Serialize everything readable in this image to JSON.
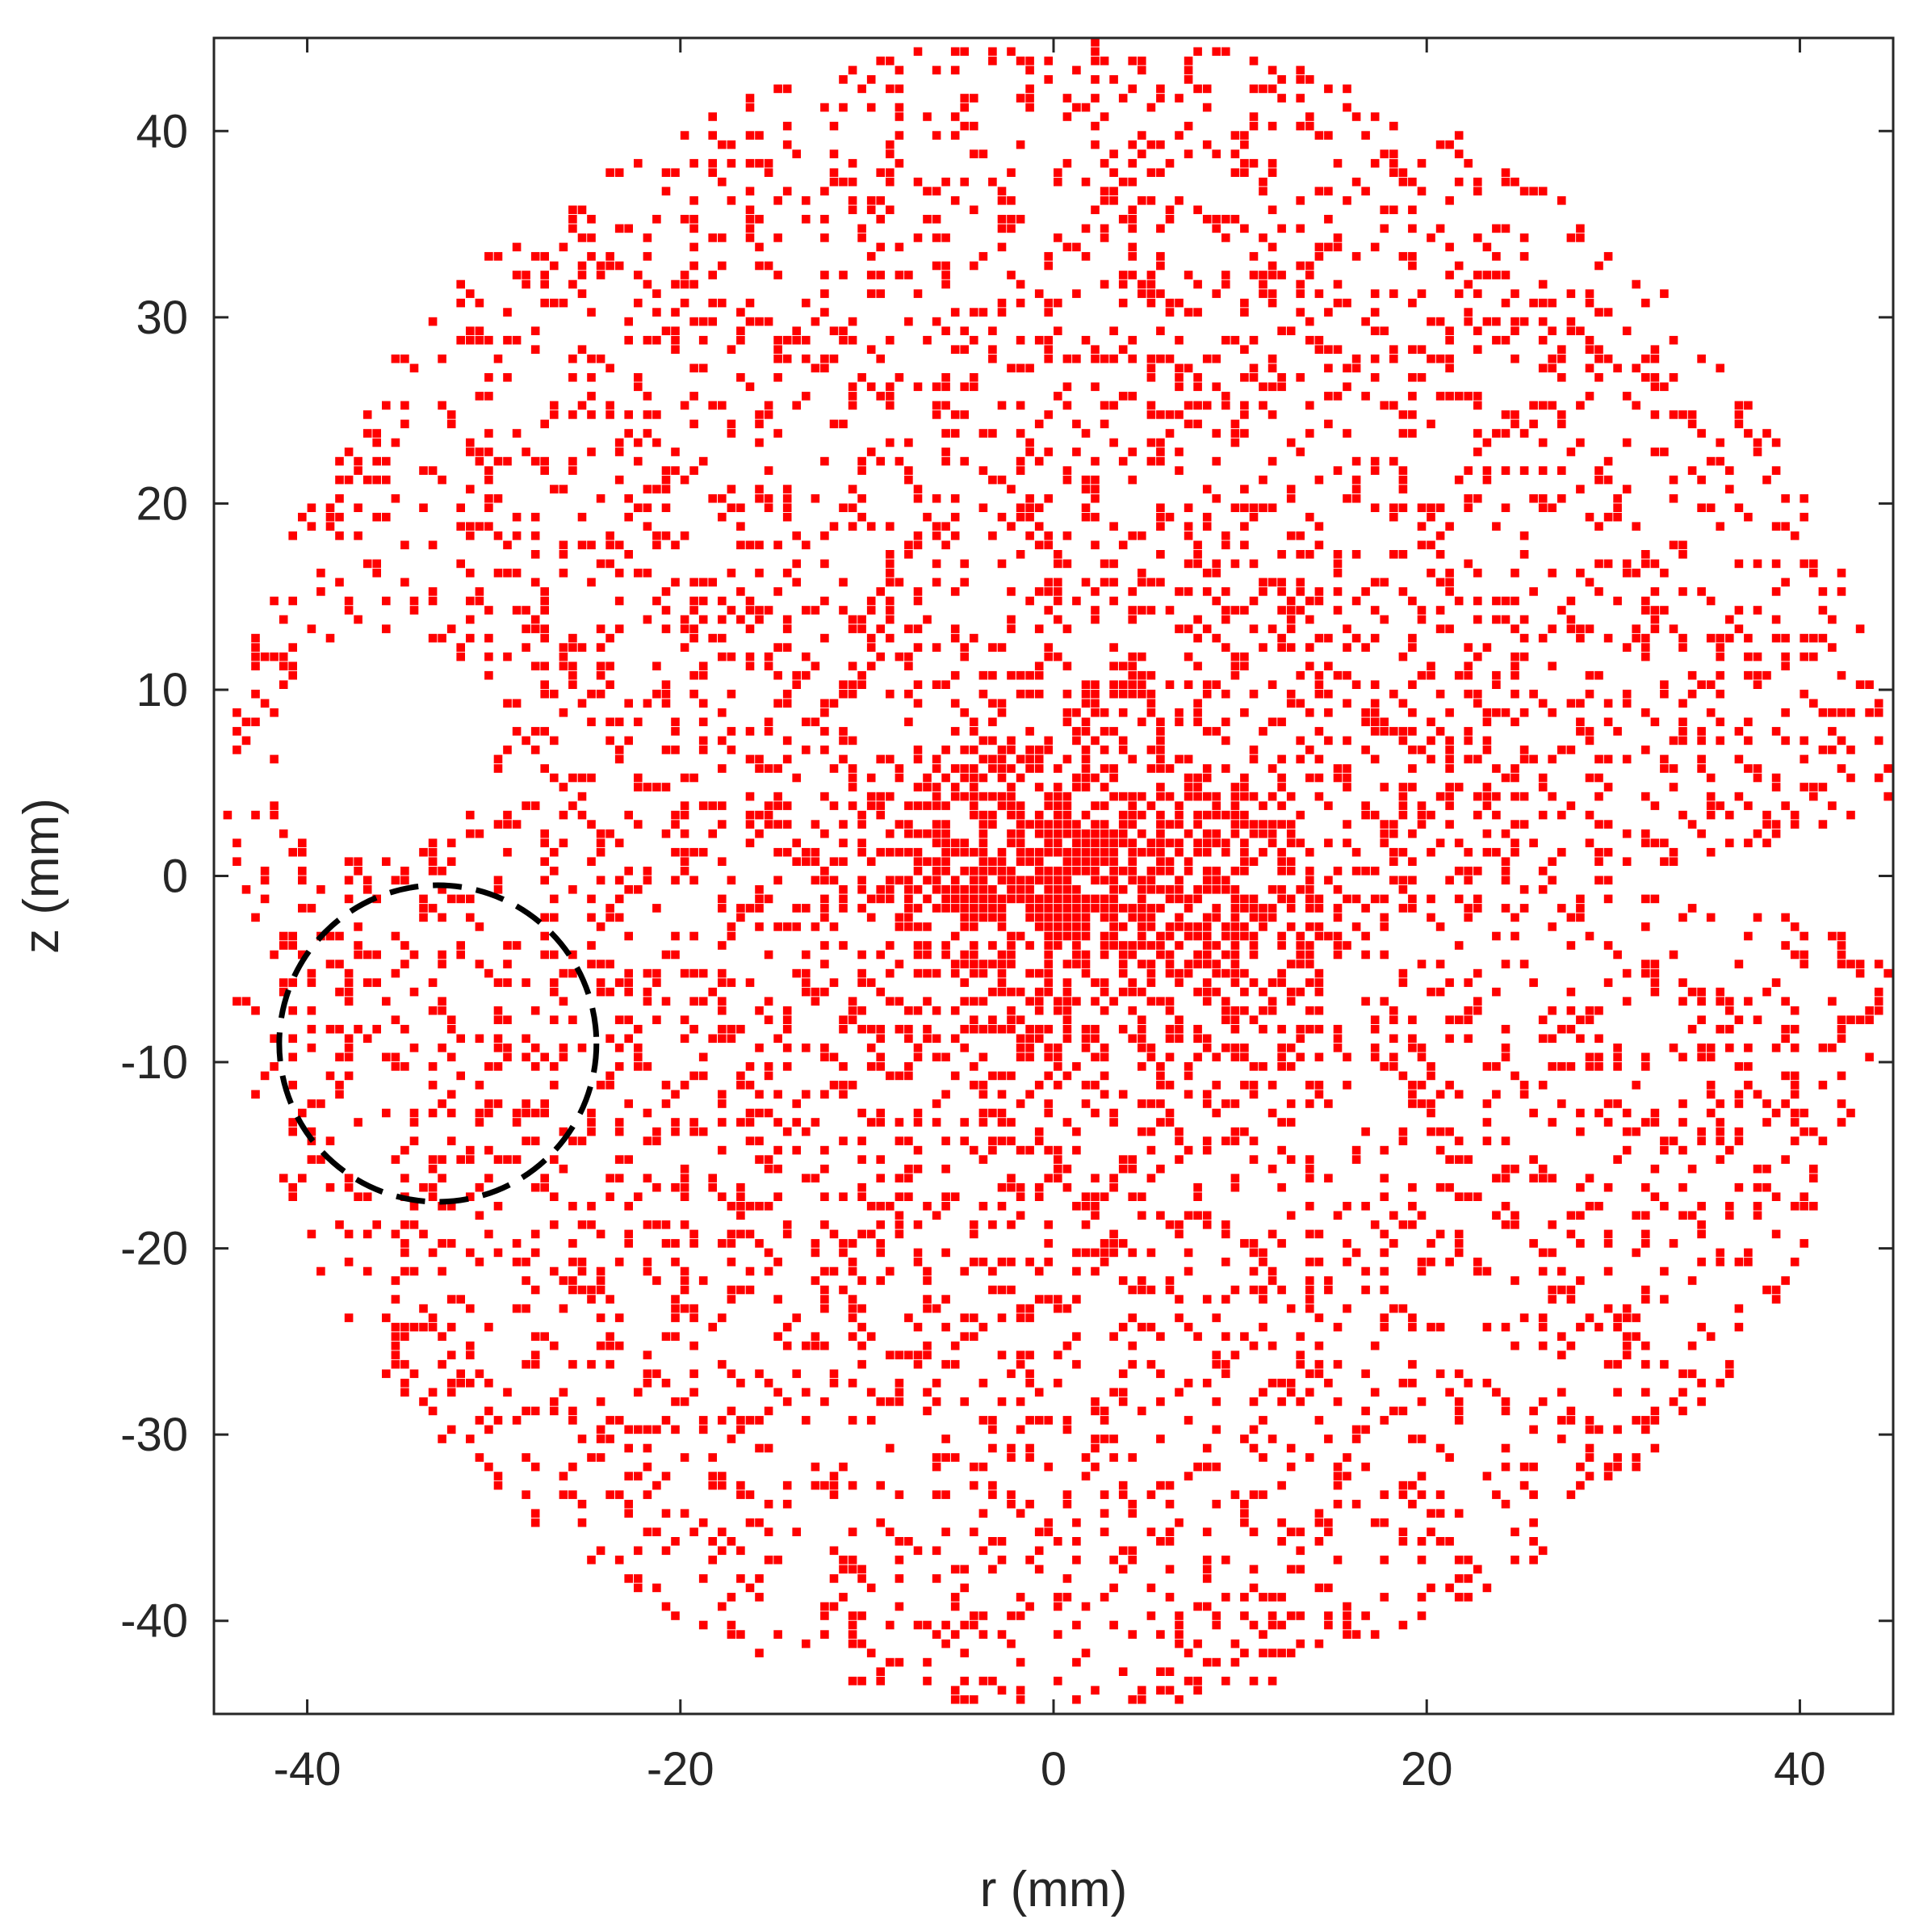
{
  "chart_data": {
    "type": "scatter",
    "title": "",
    "xlabel": "r (mm)",
    "ylabel": "z (mm)",
    "xlim": [
      -45,
      45
    ],
    "ylim": [
      -45,
      45
    ],
    "xticks": [
      -40,
      -20,
      0,
      20,
      40
    ],
    "yticks": [
      40,
      30,
      20,
      10,
      0,
      -10,
      -20,
      -30,
      -40
    ],
    "xtick_labels": [
      "-40",
      "-20",
      "0",
      "20",
      "40"
    ],
    "ytick_labels": [
      "40",
      "30",
      "20",
      "10",
      "0",
      "-10",
      "-20",
      "-30",
      "-40"
    ],
    "grid": false,
    "legend": "none",
    "series": [
      {
        "color": "#ff0000",
        "marker": "square",
        "description_region": {
          "outer_boundary_center": [
            0,
            0
          ],
          "outer_boundary_radius": 45,
          "grid_spacing": 0.5,
          "dense_core_center": [
            2,
            -1
          ],
          "dense_core_extent": [
            10,
            7
          ],
          "empty_regions": [
            {
              "shape": "circle",
              "center": [
                -36,
                7
              ],
              "radius": 6
            },
            {
              "shape": "wedge",
              "apex": [
                28,
                -1
              ],
              "angle_deg": [
                -7,
                14
              ]
            }
          ]
        }
      }
    ],
    "annotations": [
      {
        "type": "dashed-circle",
        "center": [
          -33,
          -9
        ],
        "radius": 8.5,
        "color": "#000000"
      }
    ]
  }
}
